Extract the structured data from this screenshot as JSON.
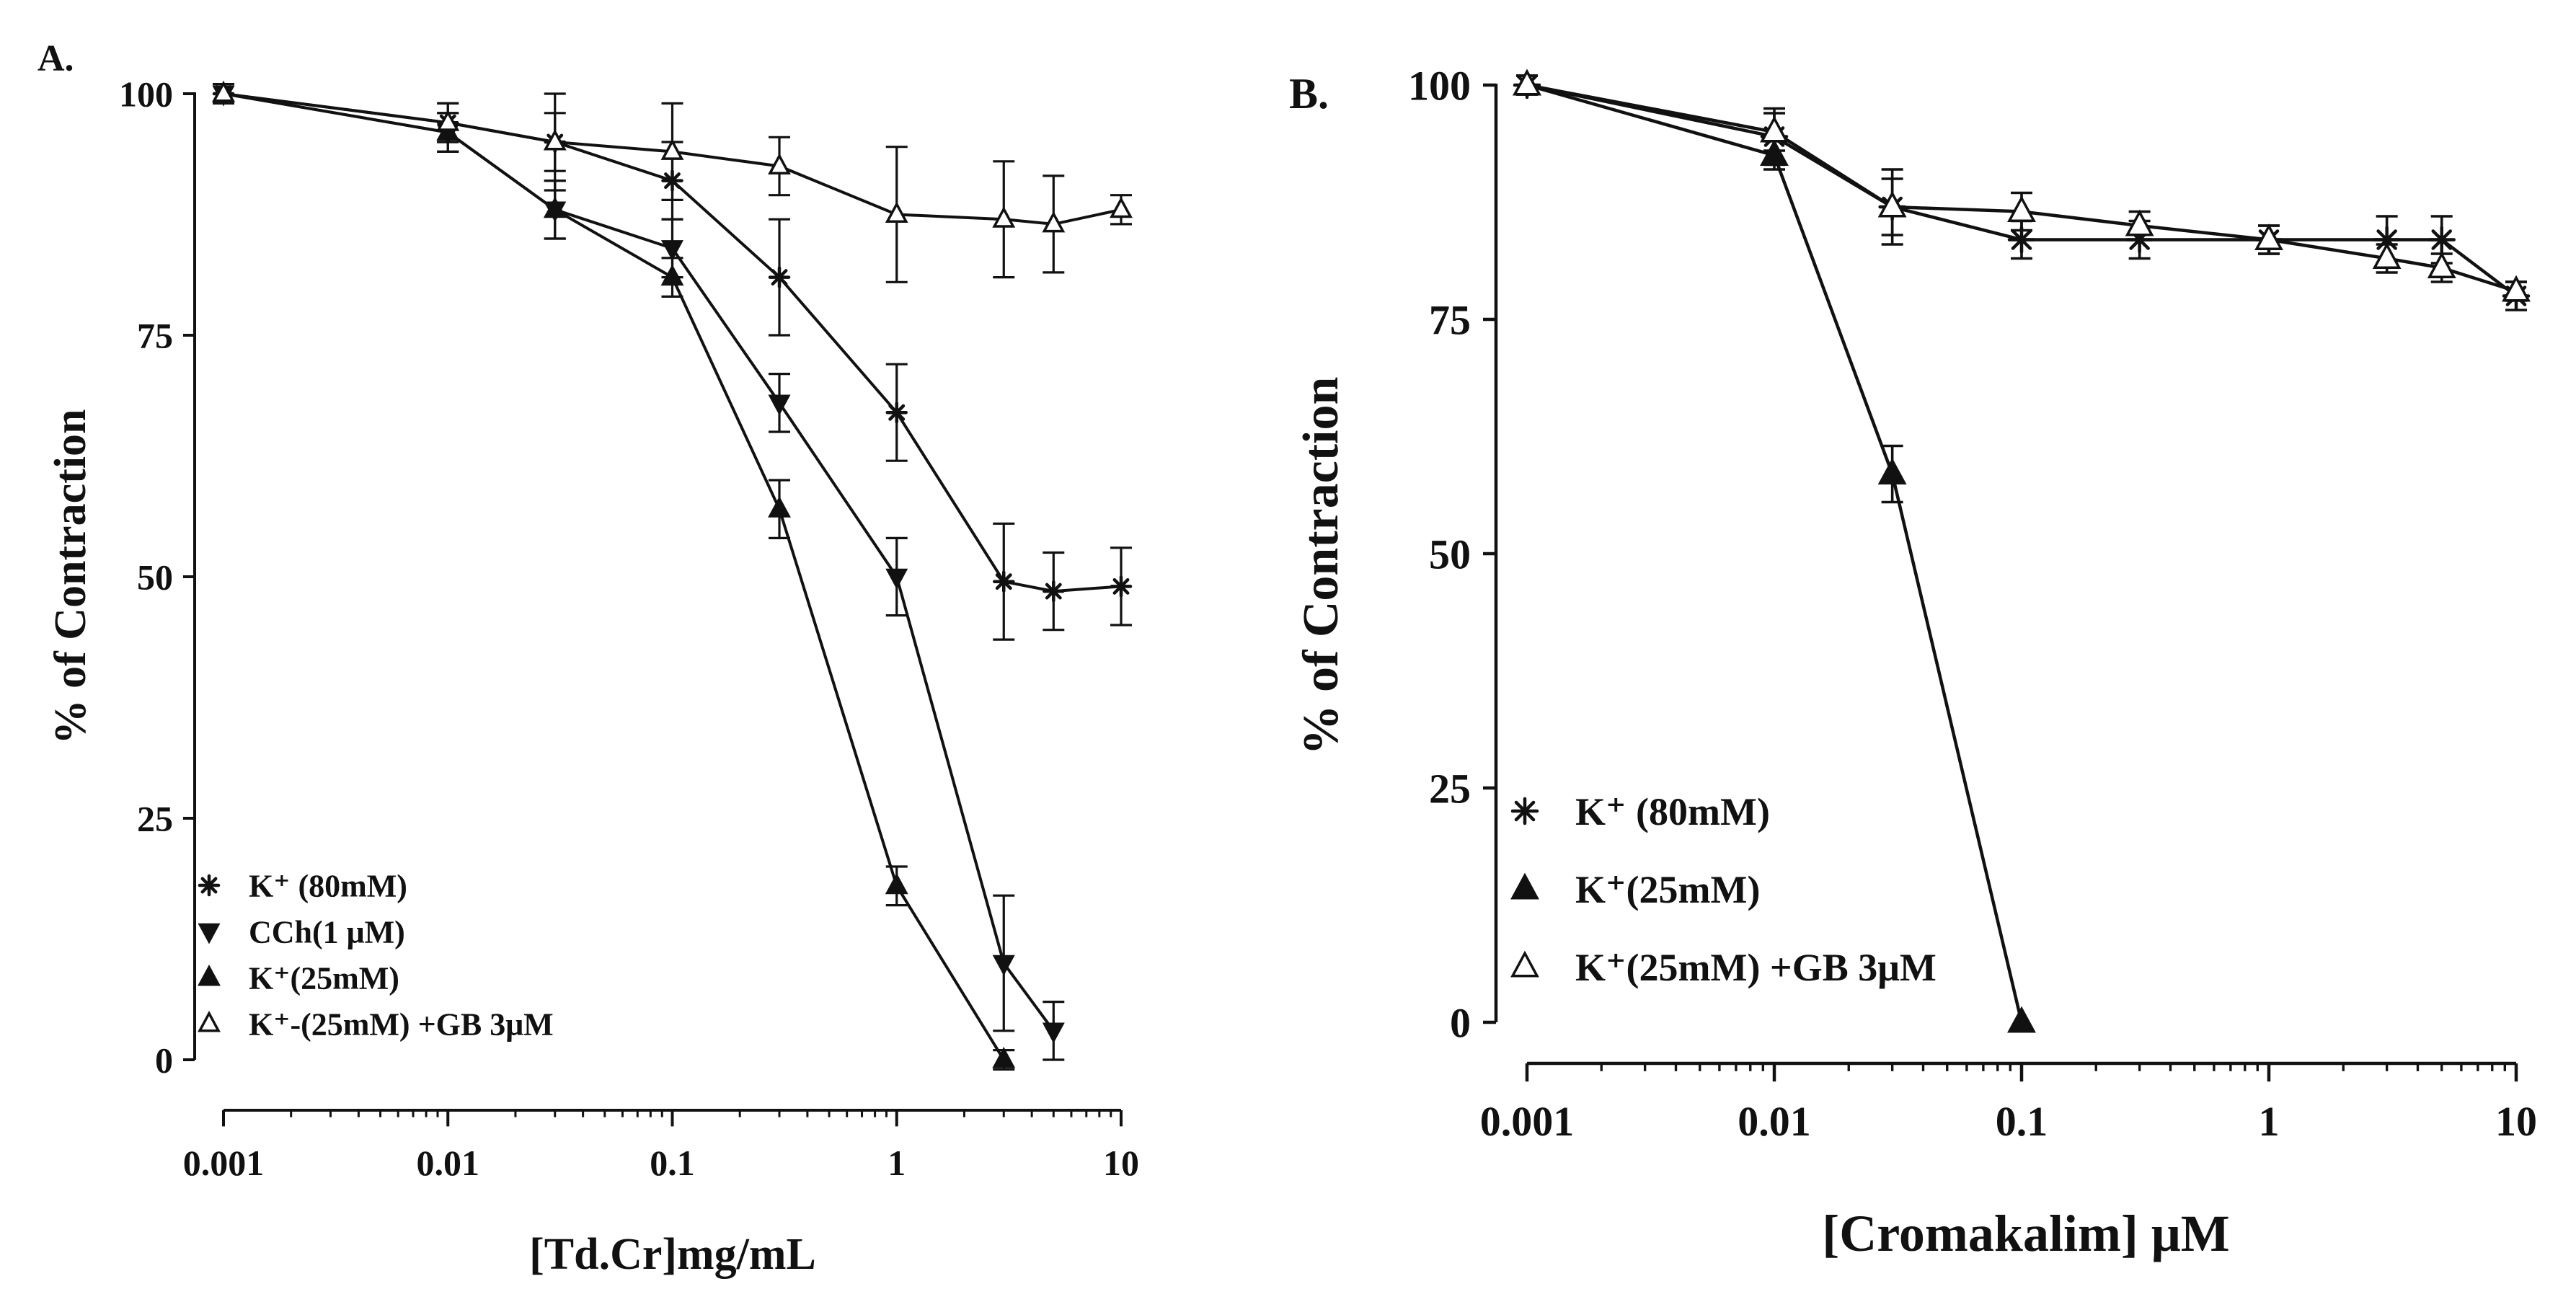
{
  "chart_data": [
    {
      "panel": "A.",
      "type": "line",
      "xscale": "log",
      "xlabel": "[Td.Cr]mg/mL",
      "ylabel": "% of Contraction",
      "xlim": [
        0.001,
        10
      ],
      "ylim": [
        0,
        100
      ],
      "xticks": [
        0.001,
        0.01,
        0.1,
        1,
        10
      ],
      "xtick_labels": [
        "0.001",
        "0.01",
        "0.1",
        "1",
        "10"
      ],
      "yticks": [
        0,
        25,
        50,
        75,
        100
      ],
      "ytick_labels": [
        "0",
        "25",
        "50",
        "75",
        "100"
      ],
      "legend_position": "bottom-left",
      "series": [
        {
          "name": "K⁺ (80mM)",
          "marker": "star",
          "x": [
            0.001,
            0.01,
            0.03,
            0.1,
            0.3,
            1,
            3,
            5,
            10
          ],
          "values": [
            100,
            97,
            95,
            91,
            81,
            67,
            49.5,
            48.5,
            49
          ],
          "err": [
            1,
            2,
            5,
            4,
            6,
            5,
            6,
            4,
            4
          ]
        },
        {
          "name": "CCh(1 μM)",
          "marker": "triangle-down",
          "x": [
            0.001,
            0.01,
            0.03,
            0.1,
            0.3,
            1,
            3,
            5
          ],
          "values": [
            100,
            96,
            88,
            84,
            68,
            50,
            10,
            3
          ],
          "err": [
            1,
            2,
            3,
            3,
            3,
            4,
            7,
            3
          ]
        },
        {
          "name": "K⁺(25mM)",
          "marker": "triangle-up",
          "x": [
            0.001,
            0.01,
            0.03,
            0.1,
            0.3,
            1,
            3
          ],
          "values": [
            100,
            96,
            88,
            81,
            57,
            18,
            0
          ],
          "err": [
            1,
            2,
            3,
            2,
            3,
            2,
            1
          ]
        },
        {
          "name": "K⁺-(25mM) +GB 3μM",
          "marker": "triangle-up-open",
          "x": [
            0.001,
            0.01,
            0.03,
            0.1,
            0.3,
            1,
            3,
            5,
            10
          ],
          "values": [
            100,
            97,
            95,
            94,
            92.5,
            87.5,
            87,
            86.5,
            88
          ],
          "err": [
            1,
            2,
            3,
            5,
            3,
            7,
            6,
            5,
            1.5
          ]
        }
      ]
    },
    {
      "panel": "B.",
      "type": "line",
      "xscale": "log",
      "xlabel": "[Cromakalim] μM",
      "ylabel": "% of Contraction",
      "xlim": [
        0.001,
        10
      ],
      "ylim": [
        0,
        100
      ],
      "xticks": [
        0.001,
        0.01,
        0.1,
        1,
        10
      ],
      "xtick_labels": [
        "0.001",
        "0.01",
        "0.1",
        "1",
        "10"
      ],
      "yticks": [
        0,
        25,
        50,
        75,
        100
      ],
      "ytick_labels": [
        "0",
        "25",
        "50",
        "75",
        "100"
      ],
      "legend_position": "bottom-left",
      "series": [
        {
          "name": "K⁺ (80mM)",
          "marker": "star",
          "x": [
            0.001,
            0.01,
            0.03,
            0.1,
            0.3,
            1,
            3,
            5,
            10
          ],
          "values": [
            100,
            94.5,
            87,
            83.5,
            83.5,
            83.5,
            83.5,
            83.5,
            77.5
          ],
          "err": [
            1,
            3,
            4,
            2,
            2,
            1.5,
            2.5,
            2.5,
            1.5
          ]
        },
        {
          "name": "K⁺(25mM)",
          "marker": "triangle-up",
          "x": [
            0.001,
            0.01,
            0.03,
            0.1
          ],
          "values": [
            100,
            92.5,
            58.5,
            0
          ],
          "err": [
            1,
            1.5,
            3,
            0
          ]
        },
        {
          "name": "K⁺(25mM) +GB 3μM",
          "marker": "triangle-up-open",
          "x": [
            0.001,
            0.01,
            0.03,
            0.1,
            0.3,
            1,
            3,
            5,
            10
          ],
          "values": [
            100,
            95,
            87,
            86.5,
            85,
            83.5,
            81.5,
            80.5,
            78
          ],
          "err": [
            1,
            2,
            3,
            2,
            1.5,
            1.5,
            1.5,
            1.5,
            1
          ]
        }
      ]
    }
  ]
}
